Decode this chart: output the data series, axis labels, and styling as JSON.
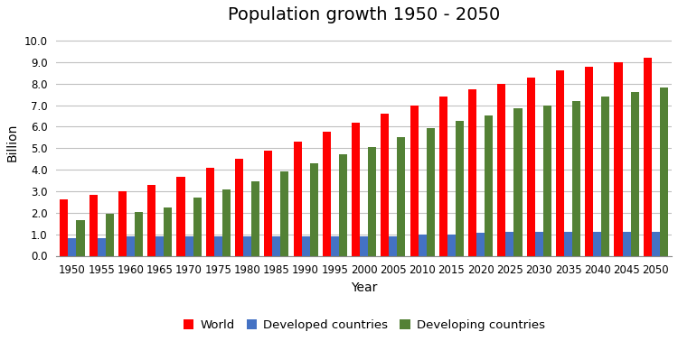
{
  "title": "Population growth 1950 - 2050",
  "xlabel": "Year",
  "ylabel": "Billion",
  "years": [
    1950,
    1955,
    1960,
    1965,
    1970,
    1975,
    1980,
    1985,
    1990,
    1995,
    2000,
    2005,
    2010,
    2015,
    2020,
    2025,
    2030,
    2035,
    2040,
    2045,
    2050
  ],
  "world": [
    2.6,
    2.85,
    3.0,
    3.3,
    3.65,
    4.1,
    4.5,
    4.9,
    5.3,
    5.75,
    6.2,
    6.6,
    7.0,
    7.4,
    7.75,
    8.0,
    8.3,
    8.6,
    8.8,
    9.0,
    9.2
  ],
  "developed": [
    0.8,
    0.8,
    0.9,
    0.9,
    0.9,
    0.9,
    0.9,
    0.9,
    0.9,
    0.9,
    0.9,
    0.9,
    1.0,
    1.0,
    1.05,
    1.1,
    1.1,
    1.1,
    1.1,
    1.1,
    1.1
  ],
  "developing": [
    1.65,
    1.95,
    2.05,
    2.25,
    2.7,
    3.1,
    3.45,
    3.9,
    4.3,
    4.7,
    5.05,
    5.5,
    5.95,
    6.25,
    6.5,
    6.85,
    7.0,
    7.2,
    7.4,
    7.6,
    7.8
  ],
  "world_color": "#FF0000",
  "developed_color": "#4472C4",
  "developing_color": "#538135",
  "ylim": [
    0,
    10.5
  ],
  "yticks": [
    0.0,
    1.0,
    2.0,
    3.0,
    4.0,
    5.0,
    6.0,
    7.0,
    8.0,
    9.0,
    10.0
  ],
  "ytick_labels": [
    "0.0",
    "1.0",
    "2.0",
    "3.0",
    "4.0",
    "5.0",
    "6.0",
    "7.0",
    "8.0",
    "9.0",
    "10.0"
  ],
  "bar_width": 0.28,
  "background_color": "#FFFFFF",
  "grid_color": "#C0C0C0",
  "title_fontsize": 14,
  "label_fontsize": 10,
  "tick_fontsize": 8.5,
  "legend_fontsize": 9.5
}
